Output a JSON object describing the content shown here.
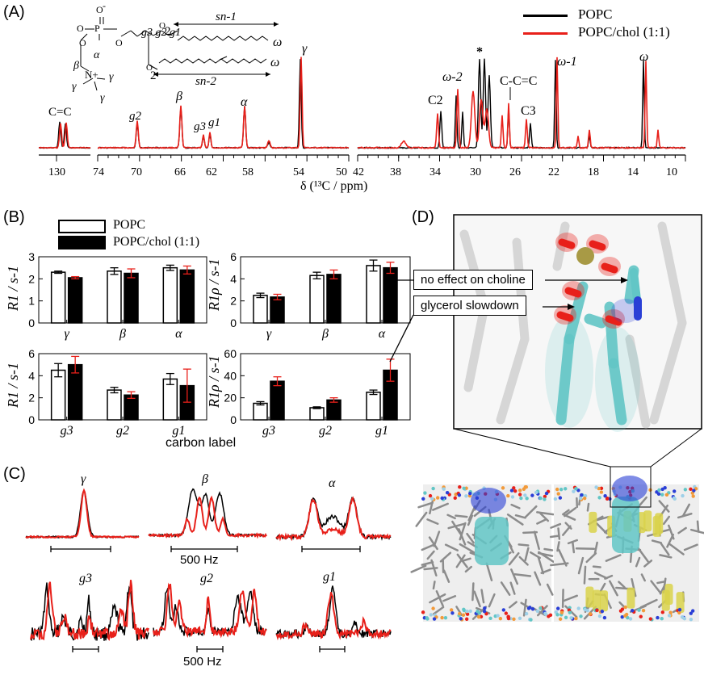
{
  "panels": {
    "a": "(A)",
    "b": "(B)",
    "c": "(C)",
    "d": "(D)"
  },
  "panel_a": {
    "legend": [
      "POPC",
      "POPC/chol (1:1)"
    ],
    "colors": {
      "popc": "#000000",
      "chol": "#e8201a"
    },
    "x_label": "δ (¹³C / ppm)",
    "ticks_1": [
      "130"
    ],
    "ticks_2": [
      "74",
      "70",
      "66",
      "62",
      "58",
      "54",
      "50"
    ],
    "ticks_3": [
      "42",
      "38",
      "34",
      "30",
      "26",
      "22",
      "18",
      "14",
      "10"
    ],
    "peaks": {
      "cc": "C=C",
      "g2": "g2",
      "beta": "β",
      "g3": "g3",
      "g1": "g1",
      "alpha": "α",
      "gamma": "γ",
      "c2": "C2",
      "omega2": "ω-2",
      "star": "*",
      "c_cc": "C-C=C",
      "c3": "C3",
      "omega1": "ω-1",
      "omega": "ω"
    },
    "molecule": {
      "o_minus": "O",
      "p": "P",
      "o_labels": [
        "O",
        "O",
        "O",
        "O",
        "O"
      ],
      "glycerol": "g3 g2 g1",
      "carbonyl_1": "2",
      "carbonyl_2": "2",
      "sn1": "sn-1",
      "sn2": "sn-2",
      "omega_1": "ω",
      "omega_2": "ω",
      "alpha": "α",
      "beta": "β",
      "gamma": "γ",
      "n_plus": "N+"
    }
  },
  "panel_b": {
    "legend": [
      "POPC",
      "POPC/chol (1:1)"
    ],
    "x_axis_label": "carbon label",
    "chart_data": [
      {
        "type": "bar",
        "ylabel": "R1 / s-1",
        "categories": [
          "γ",
          "β",
          "α"
        ],
        "ylim": [
          0,
          3
        ],
        "yticks": [
          "0",
          "1",
          "2",
          "3"
        ],
        "series": [
          {
            "name": "POPC",
            "values": [
              2.3,
              2.35,
              2.5
            ],
            "errors": [
              0.05,
              0.15,
              0.12
            ]
          },
          {
            "name": "POPC/chol (1:1)",
            "values": [
              2.05,
              2.25,
              2.4
            ],
            "errors": [
              0.05,
              0.2,
              0.18
            ]
          }
        ]
      },
      {
        "type": "bar",
        "ylabel": "R1ρ / s-1",
        "categories": [
          "γ",
          "β",
          "α"
        ],
        "ylim": [
          0,
          6
        ],
        "yticks": [
          "0",
          "2",
          "4",
          "6"
        ],
        "series": [
          {
            "name": "POPC",
            "values": [
              2.5,
              4.3,
              5.2
            ],
            "errors": [
              0.2,
              0.3,
              0.5
            ]
          },
          {
            "name": "POPC/chol (1:1)",
            "values": [
              2.35,
              4.4,
              5.0
            ],
            "errors": [
              0.25,
              0.4,
              0.5
            ]
          }
        ]
      },
      {
        "type": "bar",
        "ylabel": "R1 / s-1",
        "categories": [
          "g3",
          "g2",
          "g1"
        ],
        "ylim": [
          0,
          6
        ],
        "yticks": [
          "0",
          "2",
          "4",
          "6"
        ],
        "series": [
          {
            "name": "POPC",
            "values": [
              4.5,
              2.7,
              3.7
            ],
            "errors": [
              0.6,
              0.25,
              0.5
            ]
          },
          {
            "name": "POPC/chol (1:1)",
            "values": [
              5.0,
              2.25,
              3.1
            ],
            "errors": [
              0.75,
              0.3,
              1.5
            ]
          }
        ]
      },
      {
        "type": "bar",
        "ylabel": "R1ρ / s-1",
        "categories": [
          "g3",
          "g2",
          "g1"
        ],
        "ylim": [
          0,
          60
        ],
        "yticks": [
          "0",
          "20",
          "40",
          "60"
        ],
        "series": [
          {
            "name": "POPC",
            "values": [
              15,
              11,
              25
            ],
            "errors": [
              1.5,
              0.8,
              2
            ]
          },
          {
            "name": "POPC/chol (1:1)",
            "values": [
              35,
              18,
              45
            ],
            "errors": [
              4,
              2,
              10
            ]
          }
        ]
      }
    ]
  },
  "panel_c": {
    "labels": [
      "γ",
      "β",
      "α",
      "g3",
      "g2",
      "g1"
    ],
    "scale_labels": [
      "500 Hz",
      "500 Hz"
    ]
  },
  "panel_d": {
    "annotations": [
      "no effect on choline",
      "glycerol slowdown"
    ],
    "colors": {
      "lipid": "#62c6c6",
      "cholesterol": "#d9d24a",
      "oxygen": "#e8201a",
      "nitrogen": "#2a3fd6",
      "phosphorus": "#a89a45"
    }
  }
}
